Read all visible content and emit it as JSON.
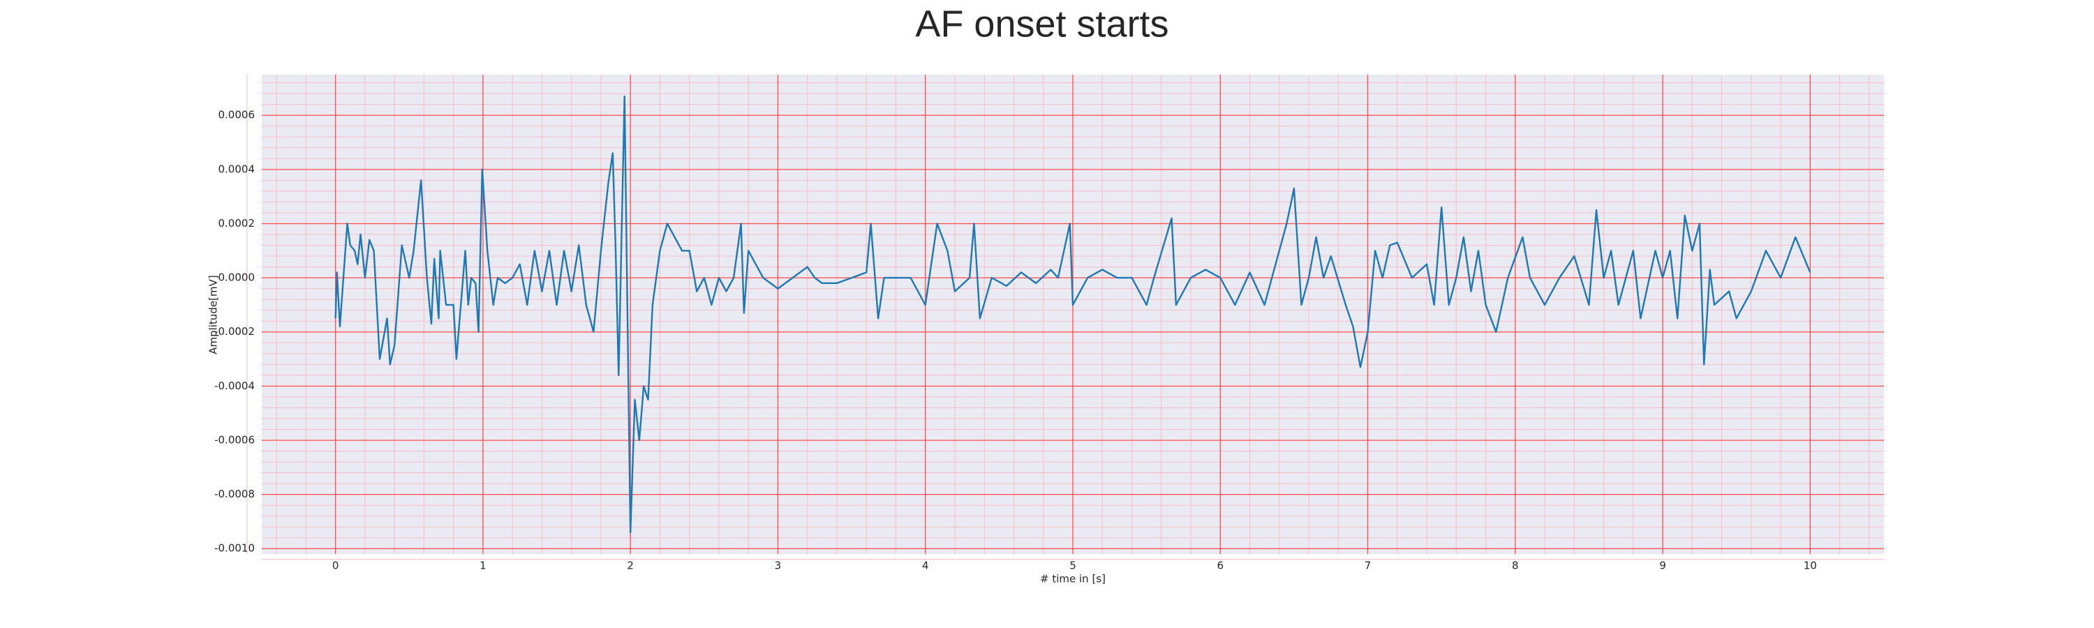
{
  "chart_data": {
    "type": "line",
    "title": "AF onset starts",
    "xlabel": "# time in [s]",
    "ylabel": "Amplitude[mV]",
    "xlim": [
      -0.5,
      10.5
    ],
    "ylim": [
      -0.00102,
      0.00075
    ],
    "xticks": [
      0,
      1,
      2,
      3,
      4,
      5,
      6,
      7,
      8,
      9,
      10
    ],
    "yticks": [
      {
        "value": -0.001,
        "label": "-0.0010"
      },
      {
        "value": -0.0008,
        "label": "-0.0008"
      },
      {
        "value": -0.0006,
        "label": "-0.0006"
      },
      {
        "value": -0.0004,
        "label": "-0.0004"
      },
      {
        "value": -0.0002,
        "label": "-0.0002"
      },
      {
        "value": 0,
        "label": "0.0000"
      },
      {
        "value": 0.0002,
        "label": "0.0002"
      },
      {
        "value": 0.0004,
        "label": "0.0004"
      },
      {
        "value": 0.0006,
        "label": "0.0006"
      }
    ],
    "grid": true,
    "minor_grid": true,
    "grid_color": "#ff4d4d",
    "minor_grid_color": "#f7bcc8",
    "background": "#eaeaf2",
    "series": [
      {
        "color": "#1f77b4",
        "x": [
          0,
          0.01,
          0.03,
          0.08,
          0.1,
          0.13,
          0.15,
          0.17,
          0.2,
          0.23,
          0.26,
          0.3,
          0.35,
          0.37,
          0.4,
          0.45,
          0.5,
          0.53,
          0.58,
          0.62,
          0.65,
          0.67,
          0.7,
          0.71,
          0.75,
          0.8,
          0.82,
          0.88,
          0.9,
          0.92,
          0.95,
          0.97,
          0.995,
          1.03,
          1.05,
          1.07,
          1.1,
          1.15,
          1.2,
          1.25,
          1.3,
          1.35,
          1.4,
          1.45,
          1.5,
          1.55,
          1.6,
          1.65,
          1.7,
          1.75,
          1.8,
          1.85,
          1.88,
          1.9,
          1.92,
          1.96,
          2.0,
          2.03,
          2.06,
          2.09,
          2.12,
          2.15,
          2.2,
          2.25,
          2.3,
          2.35,
          2.4,
          2.45,
          2.5,
          2.55,
          2.6,
          2.65,
          2.7,
          2.75,
          2.77,
          2.8,
          2.85,
          2.9,
          3.0,
          3.1,
          3.2,
          3.25,
          3.3,
          3.4,
          3.5,
          3.6,
          3.63,
          3.68,
          3.72,
          3.8,
          3.9,
          4.0,
          4.08,
          4.15,
          4.2,
          4.3,
          4.33,
          4.37,
          4.45,
          4.55,
          4.65,
          4.75,
          4.85,
          4.9,
          4.98,
          5.0,
          5.1,
          5.2,
          5.3,
          5.4,
          5.5,
          5.55,
          5.67,
          5.7,
          5.8,
          5.9,
          6.0,
          6.1,
          6.2,
          6.3,
          6.35,
          6.4,
          6.45,
          6.5,
          6.55,
          6.6,
          6.65,
          6.7,
          6.75,
          6.85,
          6.9,
          6.95,
          7.0,
          7.05,
          7.1,
          7.15,
          7.2,
          7.3,
          7.4,
          7.45,
          7.5,
          7.55,
          7.6,
          7.65,
          7.7,
          7.75,
          7.8,
          7.87,
          7.95,
          8.05,
          8.1,
          8.2,
          8.3,
          8.4,
          8.5,
          8.55,
          8.6,
          8.65,
          8.7,
          8.8,
          8.85,
          8.95,
          9.0,
          9.05,
          9.1,
          9.15,
          9.2,
          9.25,
          9.28,
          9.32,
          9.35,
          9.45,
          9.5,
          9.6,
          9.7,
          9.8,
          9.9,
          10.0
        ],
        "values": [
          -0.00015,
          2e-05,
          -0.00018,
          0.0002,
          0.00012,
          0.0001,
          5e-05,
          0.00016,
          0.0,
          0.00014,
          0.0001,
          -0.0003,
          -0.00015,
          -0.00032,
          -0.00025,
          0.00012,
          0.0,
          0.0001,
          0.00036,
          0.0,
          -0.00017,
          7e-05,
          -0.00015,
          0.0001,
          -0.0001,
          -0.0001,
          -0.0003,
          0.0001,
          -0.0001,
          0.0,
          -2e-05,
          -0.0002,
          0.0004,
          0.0001,
          0.0,
          -0.0001,
          0.0,
          -2e-05,
          0.0,
          5e-05,
          -0.0001,
          0.0001,
          -5e-05,
          0.0001,
          -0.0001,
          0.0001,
          -5e-05,
          0.00012,
          -0.0001,
          -0.0002,
          0.0001,
          0.00035,
          0.00046,
          0.0001,
          -0.00036,
          0.00067,
          -0.00094,
          -0.00045,
          -0.0006,
          -0.0004,
          -0.00045,
          -0.0001,
          0.0001,
          0.0002,
          0.00015,
          0.0001,
          0.0001,
          -5e-05,
          0.0,
          -0.0001,
          0.0,
          -5e-05,
          0.0,
          0.0002,
          -0.00013,
          0.0001,
          5e-05,
          0.0,
          -4e-05,
          0.0,
          4e-05,
          0.0,
          -2e-05,
          -2e-05,
          0.0,
          2e-05,
          0.0002,
          -0.00015,
          0.0,
          0.0,
          0.0,
          -0.0001,
          0.0002,
          0.0001,
          -5e-05,
          0.0,
          0.0002,
          -0.00015,
          0.0,
          -3e-05,
          2e-05,
          -2e-05,
          3e-05,
          0.0,
          0.0002,
          -0.0001,
          0.0,
          3e-05,
          0.0,
          0.0,
          -0.0001,
          0.0,
          0.00022,
          -0.0001,
          0.0,
          3e-05,
          0.0,
          -0.0001,
          2e-05,
          -0.0001,
          0.0,
          0.0001,
          0.0002,
          0.00033,
          -0.0001,
          0.0,
          0.00015,
          0.0,
          8e-05,
          -0.0001,
          -0.00018,
          -0.00033,
          -0.0002,
          0.0001,
          0.0,
          0.00012,
          0.00013,
          0.0,
          5e-05,
          -0.0001,
          0.00026,
          -0.0001,
          0.0,
          0.00015,
          -5e-05,
          0.0001,
          -0.0001,
          -0.0002,
          0.0,
          0.00015,
          0.0,
          -0.0001,
          0.0,
          8e-05,
          -0.0001,
          0.00025,
          0.0,
          0.0001,
          -0.0001,
          0.0001,
          -0.00015,
          0.0001,
          0.0,
          0.0001,
          -0.00015,
          0.00023,
          0.0001,
          0.0002,
          -0.00032,
          3e-05,
          -0.0001,
          -5e-05,
          -0.00015,
          -5e-05,
          0.0001,
          0.0,
          0.00015,
          2e-05
        ]
      }
    ]
  }
}
